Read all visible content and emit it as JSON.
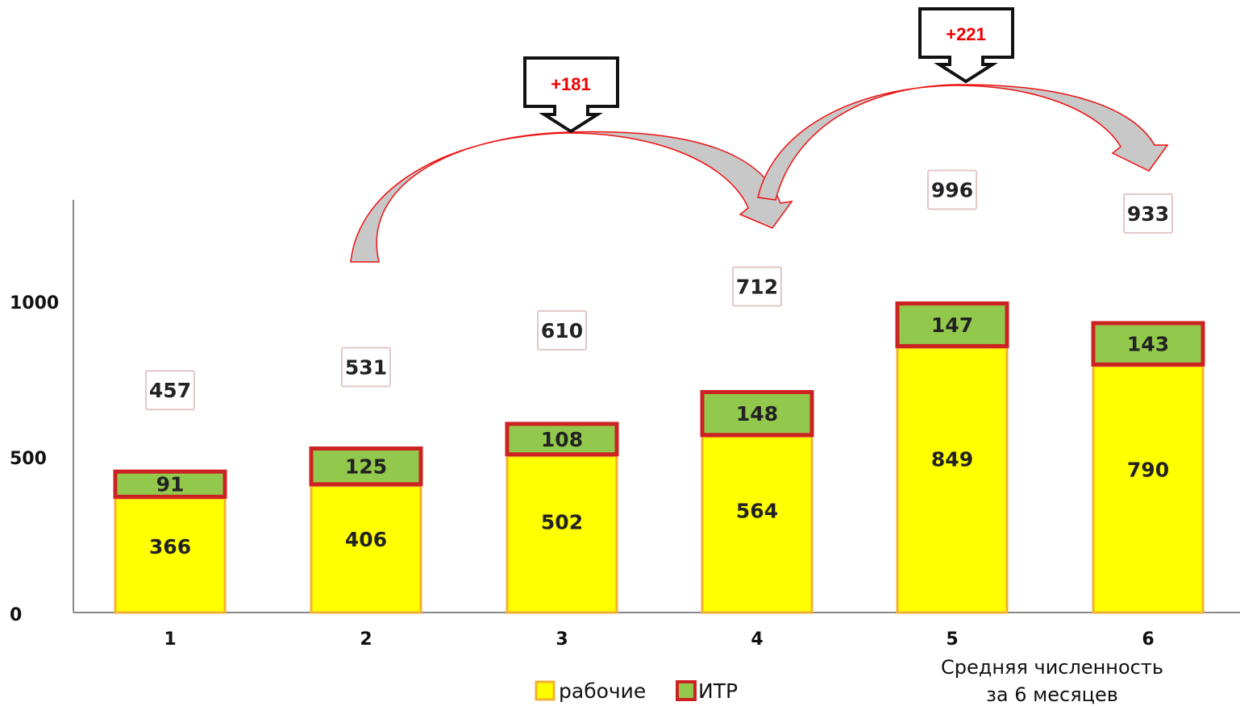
{
  "chart_data": {
    "type": "bar",
    "stacked": true,
    "categories": [
      "1",
      "2",
      "3",
      "4",
      "5",
      "6"
    ],
    "series": [
      {
        "name": "рабочие",
        "values": [
          366,
          406,
          502,
          564,
          849,
          790
        ]
      },
      {
        "name": "ИТР",
        "values": [
          91,
          125,
          108,
          148,
          147,
          143
        ]
      }
    ],
    "totals": [
      457,
      531,
      610,
      712,
      996,
      933
    ],
    "y_ticks": [
      "0",
      "500",
      "1000"
    ],
    "ylim": [
      0,
      1300
    ],
    "legend": "bottom",
    "grid": false,
    "category_note": [
      "Средняя численность",
      "за 6 месяцев"
    ],
    "annotations": [
      {
        "label": "+181",
        "from": "2",
        "to": "4"
      },
      {
        "label": "+221",
        "from": "4",
        "to": "6"
      }
    ]
  },
  "colors": {
    "workers": "#ffff00",
    "workers_edge": "#f2b134",
    "itr_fill": "#92c94c",
    "itr_edge": "#cc2222",
    "arrow": "#ee1111",
    "arrow_fill": "#c8c8c8",
    "callout_text": "#ee0000"
  }
}
